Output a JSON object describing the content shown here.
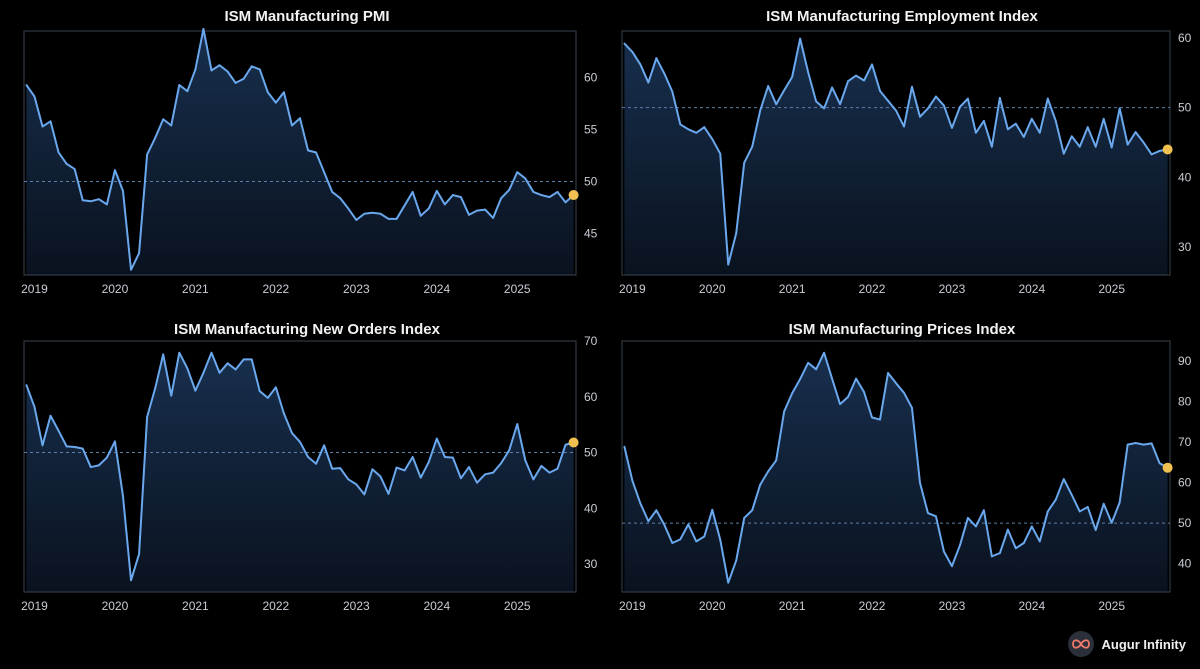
{
  "theme": {
    "background": "#000000",
    "plot_background_top": "#1a3456",
    "line": "#6aa8ee",
    "marker": "#f0c050",
    "reference_line": "#5b7fa8",
    "axis_text": "#c8ccd4"
  },
  "footer": {
    "brand": "Augur Infinity",
    "logo_icon": "infinity-icon"
  },
  "chart_data": [
    {
      "type": "line",
      "title": "ISM Manufacturing PMI",
      "xlabel": "",
      "ylabel": "",
      "x_ticks": [
        "2019",
        "2020",
        "2021",
        "2022",
        "2023",
        "2024",
        "2025"
      ],
      "y_ticks": [
        45,
        50,
        55,
        60
      ],
      "ylim": [
        41,
        64.5
      ],
      "xlim": [
        2018.87,
        2025.73
      ],
      "reference_line": 50,
      "grid": false,
      "highlight": "last point",
      "series": [
        {
          "x": [
            2018.9,
            2019.0,
            2019.1,
            2019.2,
            2019.3,
            2019.4,
            2019.5,
            2019.6,
            2019.7,
            2019.8,
            2019.9,
            2020.0,
            2020.1,
            2020.2,
            2020.3,
            2020.4,
            2020.5,
            2020.6,
            2020.7,
            2020.8,
            2020.9,
            2021.0,
            2021.1,
            2021.2,
            2021.3,
            2021.4,
            2021.5,
            2021.6,
            2021.7,
            2021.8,
            2021.9,
            2022.0,
            2022.1,
            2022.2,
            2022.3,
            2022.4,
            2022.5,
            2022.6,
            2022.7,
            2022.8,
            2022.9,
            2023.0,
            2023.1,
            2023.2,
            2023.3,
            2023.4,
            2023.5,
            2023.6,
            2023.7,
            2023.8,
            2023.9,
            2024.0,
            2024.1,
            2024.2,
            2024.3,
            2024.4,
            2024.5,
            2024.6,
            2024.7,
            2024.8,
            2024.9,
            2025.0,
            2025.1,
            2025.2,
            2025.3,
            2025.4,
            2025.5,
            2025.6,
            2025.7
          ],
          "y": [
            59.3,
            58.2,
            55.3,
            55.8,
            52.8,
            51.7,
            51.2,
            48.2,
            48.1,
            48.3,
            47.8,
            51.1,
            49.1,
            41.5,
            43.1,
            52.6,
            54.2,
            56.0,
            55.4,
            59.3,
            58.7,
            60.8,
            64.7,
            60.7,
            61.2,
            60.6,
            59.5,
            59.9,
            61.1,
            60.8,
            58.6,
            57.6,
            58.6,
            55.4,
            56.1,
            53.0,
            52.8,
            50.9,
            49.0,
            48.4,
            47.4,
            46.3,
            46.9,
            47.0,
            46.9,
            46.4,
            46.4,
            47.7,
            49.0,
            46.7,
            47.4,
            49.1,
            47.8,
            48.7,
            48.5,
            46.8,
            47.2,
            47.3,
            46.5,
            48.4,
            49.2,
            50.9,
            50.3,
            49.0,
            48.7,
            48.5,
            49.0,
            48.0,
            48.7
          ]
        }
      ]
    },
    {
      "type": "line",
      "title": "ISM Manufacturing Employment Index",
      "xlabel": "",
      "ylabel": "",
      "x_ticks": [
        "2019",
        "2020",
        "2021",
        "2022",
        "2023",
        "2024",
        "2025"
      ],
      "y_ticks": [
        30,
        40,
        50,
        60
      ],
      "ylim": [
        26,
        61
      ],
      "xlim": [
        2018.87,
        2025.73
      ],
      "reference_line": 50,
      "grid": false,
      "highlight": "last point",
      "series": [
        {
          "x": [
            2018.9,
            2019.0,
            2019.1,
            2019.2,
            2019.3,
            2019.4,
            2019.5,
            2019.6,
            2019.7,
            2019.8,
            2019.9,
            2020.0,
            2020.1,
            2020.2,
            2020.3,
            2020.4,
            2020.5,
            2020.6,
            2020.7,
            2020.8,
            2020.9,
            2021.0,
            2021.1,
            2021.2,
            2021.3,
            2021.4,
            2021.5,
            2021.6,
            2021.7,
            2021.8,
            2021.9,
            2022.0,
            2022.1,
            2022.2,
            2022.3,
            2022.4,
            2022.5,
            2022.6,
            2022.7,
            2022.8,
            2022.9,
            2023.0,
            2023.1,
            2023.2,
            2023.3,
            2023.4,
            2023.5,
            2023.6,
            2023.7,
            2023.8,
            2023.9,
            2024.0,
            2024.1,
            2024.2,
            2024.3,
            2024.4,
            2024.5,
            2024.6,
            2024.7,
            2024.8,
            2024.9,
            2025.0,
            2025.1,
            2025.2,
            2025.3,
            2025.4,
            2025.5,
            2025.6,
            2025.7
          ],
          "y": [
            59.2,
            58.0,
            56.2,
            53.6,
            57.1,
            54.9,
            52.3,
            47.6,
            46.9,
            46.4,
            47.2,
            45.5,
            43.4,
            27.5,
            32.0,
            42.1,
            44.4,
            49.6,
            53.1,
            50.5,
            52.5,
            54.4,
            59.9,
            55.1,
            50.9,
            49.9,
            52.9,
            50.5,
            53.8,
            54.6,
            53.9,
            56.2,
            52.4,
            51.0,
            49.6,
            47.3,
            53.0,
            48.7,
            49.9,
            51.6,
            50.3,
            47.1,
            50.1,
            51.3,
            46.4,
            48.1,
            44.4,
            51.4,
            46.9,
            47.7,
            45.8,
            48.4,
            46.4,
            51.3,
            48.1,
            43.4,
            45.9,
            44.4,
            47.2,
            44.4,
            48.4,
            44.3,
            49.9,
            44.7,
            46.5,
            45.0,
            43.3,
            43.8,
            44.0
          ]
        }
      ]
    },
    {
      "type": "line",
      "title": "ISM Manufacturing New Orders Index",
      "xlabel": "",
      "ylabel": "",
      "x_ticks": [
        "2019",
        "2020",
        "2021",
        "2022",
        "2023",
        "2024",
        "2025"
      ],
      "y_ticks": [
        30,
        40,
        50,
        60,
        70
      ],
      "ylim": [
        25,
        70
      ],
      "xlim": [
        2018.87,
        2025.73
      ],
      "reference_line": 50,
      "grid": false,
      "highlight": "last point",
      "series": [
        {
          "x": [
            2018.9,
            2019.0,
            2019.1,
            2019.2,
            2019.3,
            2019.4,
            2019.5,
            2019.6,
            2019.7,
            2019.8,
            2019.9,
            2020.0,
            2020.1,
            2020.2,
            2020.3,
            2020.4,
            2020.5,
            2020.6,
            2020.7,
            2020.8,
            2020.9,
            2021.0,
            2021.1,
            2021.2,
            2021.3,
            2021.4,
            2021.5,
            2021.6,
            2021.7,
            2021.8,
            2021.9,
            2022.0,
            2022.1,
            2022.2,
            2022.3,
            2022.4,
            2022.5,
            2022.6,
            2022.7,
            2022.8,
            2022.9,
            2023.0,
            2023.1,
            2023.2,
            2023.3,
            2023.4,
            2023.5,
            2023.6,
            2023.7,
            2023.8,
            2023.9,
            2024.0,
            2024.1,
            2024.2,
            2024.3,
            2024.4,
            2024.5,
            2024.6,
            2024.7,
            2024.8,
            2024.9,
            2025.0,
            2025.1,
            2025.2,
            2025.3,
            2025.4,
            2025.5,
            2025.6,
            2025.7
          ],
          "y": [
            62.1,
            58.2,
            51.3,
            56.6,
            53.9,
            51.1,
            51.0,
            50.7,
            47.4,
            47.7,
            49.1,
            52.0,
            42.2,
            27.1,
            31.8,
            56.4,
            61.5,
            67.6,
            60.2,
            67.9,
            65.1,
            61.1,
            64.3,
            67.9,
            64.3,
            66.0,
            64.9,
            66.7,
            66.7,
            61.0,
            59.8,
            61.7,
            57.0,
            53.5,
            51.9,
            49.2,
            48.0,
            51.3,
            47.1,
            47.2,
            45.2,
            44.3,
            42.5,
            47.0,
            45.7,
            42.6,
            47.3,
            46.8,
            49.2,
            45.5,
            48.3,
            52.5,
            49.2,
            49.1,
            45.4,
            47.4,
            44.6,
            46.1,
            46.4,
            48.1,
            50.4,
            55.1,
            48.6,
            45.2,
            47.6,
            46.4,
            47.1,
            51.4,
            51.8
          ]
        }
      ]
    },
    {
      "type": "line",
      "title": "ISM Manufacturing Prices Index",
      "xlabel": "",
      "ylabel": "",
      "x_ticks": [
        "2019",
        "2020",
        "2021",
        "2022",
        "2023",
        "2024",
        "2025"
      ],
      "y_ticks": [
        40,
        50,
        60,
        70,
        80,
        90
      ],
      "ylim": [
        33,
        95
      ],
      "xlim": [
        2018.87,
        2025.73
      ],
      "reference_line": 50,
      "grid": false,
      "highlight": "last point",
      "series": [
        {
          "x": [
            2018.9,
            2019.0,
            2019.1,
            2019.2,
            2019.3,
            2019.4,
            2019.5,
            2019.6,
            2019.7,
            2019.8,
            2019.9,
            2020.0,
            2020.1,
            2020.2,
            2020.3,
            2020.4,
            2020.5,
            2020.6,
            2020.7,
            2020.8,
            2020.9,
            2021.0,
            2021.1,
            2021.2,
            2021.3,
            2021.4,
            2021.5,
            2021.6,
            2021.7,
            2021.8,
            2021.9,
            2022.0,
            2022.1,
            2022.2,
            2022.3,
            2022.4,
            2022.5,
            2022.6,
            2022.7,
            2022.8,
            2022.9,
            2023.0,
            2023.1,
            2023.2,
            2023.3,
            2023.4,
            2023.5,
            2023.6,
            2023.7,
            2023.8,
            2023.9,
            2024.0,
            2024.1,
            2024.2,
            2024.3,
            2024.4,
            2024.5,
            2024.6,
            2024.7,
            2024.8,
            2024.9,
            2025.0,
            2025.1,
            2025.2,
            2025.3,
            2025.4,
            2025.5,
            2025.6,
            2025.7
          ],
          "y": [
            68.9,
            60.5,
            54.9,
            50.5,
            53.2,
            49.6,
            45.1,
            46.0,
            49.7,
            45.5,
            46.7,
            53.3,
            45.9,
            35.3,
            40.8,
            51.3,
            53.2,
            59.5,
            62.8,
            65.5,
            77.6,
            82.1,
            85.6,
            89.6,
            88.0,
            92.1,
            85.7,
            79.4,
            81.2,
            85.7,
            82.4,
            76.1,
            75.6,
            87.1,
            84.6,
            82.2,
            78.5,
            60.0,
            52.5,
            51.7,
            43.0,
            39.4,
            44.5,
            51.3,
            49.2,
            53.2,
            41.8,
            42.6,
            48.4,
            43.8,
            45.1,
            49.2,
            45.5,
            52.9,
            55.8,
            60.9,
            57.0,
            52.9,
            54.0,
            48.3,
            54.8,
            50.1,
            55.1,
            69.4,
            69.8,
            69.4,
            69.7,
            64.8,
            63.7
          ]
        }
      ]
    }
  ]
}
